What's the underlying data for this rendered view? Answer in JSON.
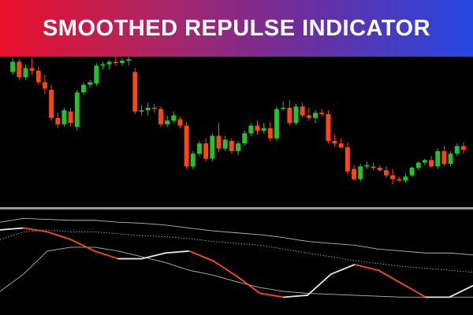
{
  "banner": {
    "title": "SMOOTHED REPULSE INDICATOR"
  },
  "indicator_label": "",
  "colors": {
    "bullish": "#22c22a",
    "bearish": "#ff4514",
    "indicator_line": "#e6e6e6",
    "indicator_line_down": "#ff4a14",
    "band": "#b4b4b4",
    "band_dotted": "#a8a8a8"
  },
  "chart_data": [
    {
      "type": "candlestick",
      "title": "",
      "xlabel": "",
      "ylabel": "",
      "ylim": [
        0,
        100
      ],
      "grid": false,
      "candles": [
        {
          "o": 88,
          "h": 99,
          "l": 86,
          "c": 96
        },
        {
          "o": 96,
          "h": 98,
          "l": 82,
          "c": 84
        },
        {
          "o": 84,
          "h": 94,
          "l": 82,
          "c": 91
        },
        {
          "o": 91,
          "h": 99,
          "l": 86,
          "c": 89
        },
        {
          "o": 89,
          "h": 92,
          "l": 78,
          "c": 80
        },
        {
          "o": 80,
          "h": 86,
          "l": 71,
          "c": 75
        },
        {
          "o": 74,
          "h": 78,
          "l": 50,
          "c": 52
        },
        {
          "o": 52,
          "h": 56,
          "l": 44,
          "c": 47
        },
        {
          "o": 47,
          "h": 60,
          "l": 45,
          "c": 58
        },
        {
          "o": 57,
          "h": 60,
          "l": 45,
          "c": 48
        },
        {
          "o": 45,
          "h": 74,
          "l": 42,
          "c": 72
        },
        {
          "o": 72,
          "h": 80,
          "l": 70,
          "c": 78
        },
        {
          "o": 78,
          "h": 82,
          "l": 76,
          "c": 80
        },
        {
          "o": 79,
          "h": 95,
          "l": 77,
          "c": 93
        },
        {
          "o": 93,
          "h": 96,
          "l": 90,
          "c": 94
        },
        {
          "o": 94,
          "h": 97,
          "l": 90,
          "c": 96
        },
        {
          "o": 96,
          "h": 100,
          "l": 93,
          "c": 95
        },
        {
          "o": 95,
          "h": 99,
          "l": 93,
          "c": 97
        },
        {
          "o": 97,
          "h": 100,
          "l": 93,
          "c": 98
        },
        {
          "o": 88,
          "h": 91,
          "l": 55,
          "c": 57
        },
        {
          "o": 57,
          "h": 62,
          "l": 54,
          "c": 58
        },
        {
          "o": 58,
          "h": 64,
          "l": 54,
          "c": 60
        },
        {
          "o": 60,
          "h": 63,
          "l": 56,
          "c": 59
        },
        {
          "o": 59,
          "h": 61,
          "l": 45,
          "c": 47
        },
        {
          "o": 47,
          "h": 54,
          "l": 45,
          "c": 50
        },
        {
          "o": 50,
          "h": 57,
          "l": 48,
          "c": 54
        },
        {
          "o": 51,
          "h": 53,
          "l": 44,
          "c": 46
        },
        {
          "o": 46,
          "h": 49,
          "l": 12,
          "c": 14
        },
        {
          "o": 14,
          "h": 26,
          "l": 12,
          "c": 24
        },
        {
          "o": 24,
          "h": 34,
          "l": 22,
          "c": 32
        },
        {
          "o": 32,
          "h": 36,
          "l": 18,
          "c": 20
        },
        {
          "o": 20,
          "h": 40,
          "l": 18,
          "c": 38
        },
        {
          "o": 38,
          "h": 48,
          "l": 25,
          "c": 28
        },
        {
          "o": 28,
          "h": 38,
          "l": 26,
          "c": 35
        },
        {
          "o": 34,
          "h": 36,
          "l": 24,
          "c": 26
        },
        {
          "o": 26,
          "h": 34,
          "l": 23,
          "c": 32
        },
        {
          "o": 32,
          "h": 42,
          "l": 30,
          "c": 40
        },
        {
          "o": 40,
          "h": 48,
          "l": 38,
          "c": 46
        },
        {
          "o": 46,
          "h": 50,
          "l": 39,
          "c": 42
        },
        {
          "o": 42,
          "h": 48,
          "l": 40,
          "c": 44
        },
        {
          "o": 44,
          "h": 49,
          "l": 34,
          "c": 36
        },
        {
          "o": 36,
          "h": 61,
          "l": 34,
          "c": 59
        },
        {
          "o": 59,
          "h": 65,
          "l": 58,
          "c": 60
        },
        {
          "o": 60,
          "h": 66,
          "l": 46,
          "c": 48
        },
        {
          "o": 48,
          "h": 63,
          "l": 46,
          "c": 61
        },
        {
          "o": 61,
          "h": 64,
          "l": 52,
          "c": 54
        },
        {
          "o": 54,
          "h": 60,
          "l": 50,
          "c": 52
        },
        {
          "o": 52,
          "h": 58,
          "l": 48,
          "c": 56
        },
        {
          "o": 56,
          "h": 59,
          "l": 53,
          "c": 55
        },
        {
          "o": 55,
          "h": 58,
          "l": 32,
          "c": 34
        },
        {
          "o": 34,
          "h": 39,
          "l": 30,
          "c": 32
        },
        {
          "o": 32,
          "h": 36,
          "l": 28,
          "c": 29
        },
        {
          "o": 29,
          "h": 33,
          "l": 8,
          "c": 10
        },
        {
          "o": 12,
          "h": 15,
          "l": 3,
          "c": 4
        },
        {
          "o": 4,
          "h": 16,
          "l": 2,
          "c": 14
        },
        {
          "o": 14,
          "h": 18,
          "l": 12,
          "c": 15
        },
        {
          "o": 14,
          "h": 17,
          "l": 11,
          "c": 13
        },
        {
          "o": 13,
          "h": 15,
          "l": 10,
          "c": 11
        },
        {
          "o": 11,
          "h": 14,
          "l": 5,
          "c": 7
        },
        {
          "o": 7,
          "h": 12,
          "l": 0,
          "c": 4
        },
        {
          "o": 4,
          "h": 6,
          "l": 2,
          "c": 3
        },
        {
          "o": 3,
          "h": 8,
          "l": 1,
          "c": 6
        },
        {
          "o": 7,
          "h": 14,
          "l": 6,
          "c": 13
        },
        {
          "o": 13,
          "h": 18,
          "l": 11,
          "c": 17
        },
        {
          "o": 17,
          "h": 20,
          "l": 15,
          "c": 19
        },
        {
          "o": 19,
          "h": 22,
          "l": 13,
          "c": 14
        },
        {
          "o": 14,
          "h": 28,
          "l": 12,
          "c": 26
        },
        {
          "o": 26,
          "h": 30,
          "l": 14,
          "c": 16
        },
        {
          "o": 16,
          "h": 26,
          "l": 14,
          "c": 24
        },
        {
          "o": 24,
          "h": 32,
          "l": 22,
          "c": 30
        },
        {
          "o": 30,
          "h": 33,
          "l": 24,
          "c": 27
        }
      ]
    },
    {
      "type": "line",
      "title": "",
      "xlabel": "",
      "ylabel": "",
      "ylim": [
        0,
        100
      ],
      "grid": false,
      "x": [
        0,
        5,
        10,
        15,
        20,
        25,
        30,
        35,
        40,
        45,
        50,
        55,
        60,
        65,
        70,
        75,
        80,
        85,
        90,
        95,
        100
      ],
      "series": [
        {
          "values": [
            82,
            84,
            80,
            72,
            60,
            52,
            52,
            58,
            60,
            50,
            34,
            16,
            12,
            14,
            36,
            46,
            40,
            26,
            12,
            12,
            24
          ]
        },
        {
          "values": [
            90,
            94,
            93,
            92,
            92,
            90,
            89,
            87,
            84,
            81,
            79,
            77,
            74,
            70,
            68,
            66,
            62,
            60,
            58,
            58,
            56
          ]
        },
        {
          "values": [
            72,
            80,
            82,
            80,
            80,
            78,
            76,
            75,
            73,
            70,
            68,
            66,
            62,
            58,
            54,
            50,
            47,
            44,
            42,
            40,
            38
          ]
        },
        {
          "values": [
            18,
            36,
            60,
            64,
            64,
            60,
            54,
            48,
            40,
            35,
            28,
            22,
            18,
            16,
            15,
            14,
            13,
            12,
            12,
            12,
            12
          ]
        }
      ]
    }
  ]
}
